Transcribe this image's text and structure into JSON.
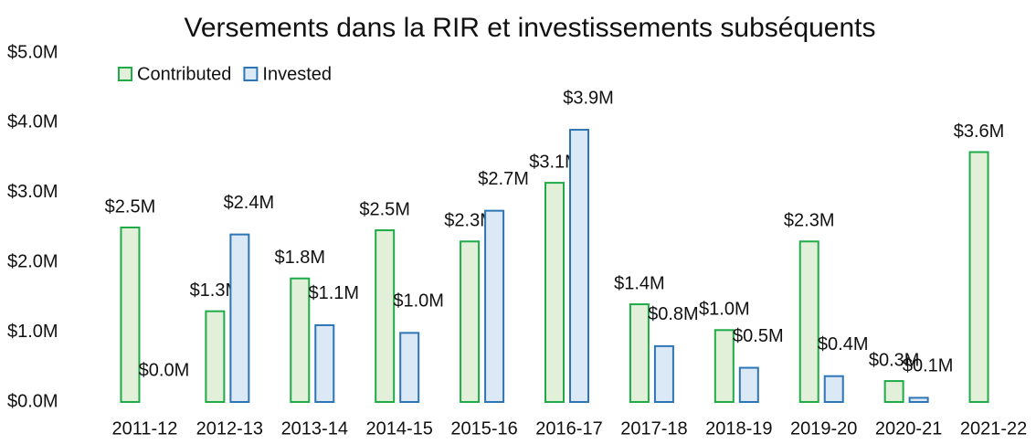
{
  "chart_data": {
    "type": "bar",
    "title": "Versements dans la RIR et investissements subséquents",
    "categories": [
      "2011-12",
      "2012-13",
      "2013-14",
      "2014-15",
      "2015-16",
      "2016-17",
      "2017-18",
      "2018-19",
      "2019-20",
      "2020-21",
      "2021-22"
    ],
    "series": [
      {
        "name": "Contributed",
        "color": "#1fab47",
        "fill": "#e2f0d9",
        "values": [
          2.5,
          1.3,
          1.77,
          2.46,
          2.3,
          3.14,
          1.4,
          1.03,
          2.3,
          0.3,
          3.58
        ],
        "value_labels": [
          "$2.5M",
          "$1.3M",
          "$1.8M",
          "$2.5M",
          "$2.3M",
          "$3.1M",
          "$1.4M",
          "$1.0M",
          "$2.3M",
          "$0.3M",
          "$3.6M"
        ]
      },
      {
        "name": "Invested",
        "color": "#2e75b6",
        "fill": "#dbe8f5",
        "values": [
          0.0,
          2.4,
          1.1,
          0.99,
          2.74,
          3.9,
          0.8,
          0.49,
          0.37,
          0.06,
          null
        ],
        "value_labels": [
          "$0.0M",
          "$2.4M",
          "$1.1M",
          "$1.0M",
          "$2.7M",
          "$3.9M",
          "$0.8M",
          "$0.5M",
          "$0.4M",
          "$0.1M",
          null
        ]
      }
    ],
    "ylim": [
      0,
      5
    ],
    "yticks": [
      {
        "value": 0,
        "label": "$0.0M"
      },
      {
        "value": 1,
        "label": "$1.0M"
      },
      {
        "value": 2,
        "label": "$2.0M"
      },
      {
        "value": 3,
        "label": "$3.0M"
      },
      {
        "value": 4,
        "label": "$4.0M"
      },
      {
        "value": 5,
        "label": "$5.0M"
      }
    ],
    "grid": false,
    "legend": "upper left"
  }
}
